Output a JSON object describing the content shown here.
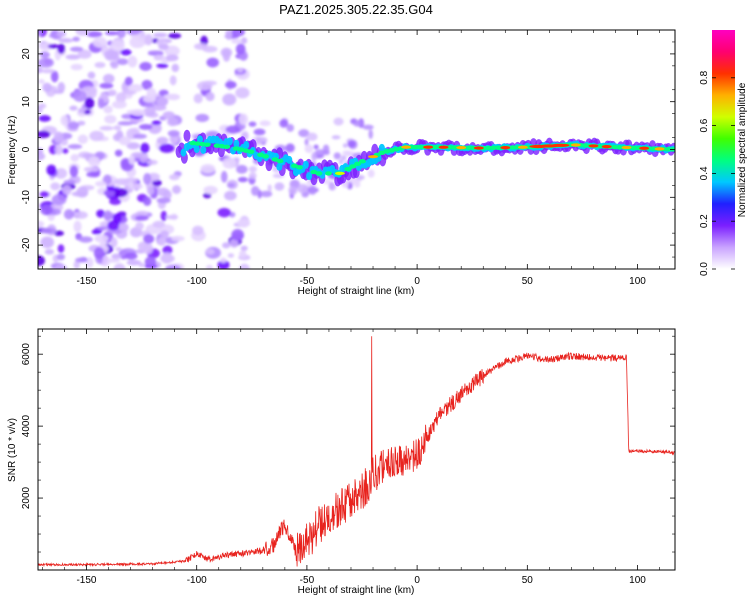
{
  "figure_title": "PAZ1.2025.305.22.35.G04",
  "chart_data": [
    {
      "type": "heatmap",
      "title": "PAZ1.2025.305.22.35.G04",
      "xlabel": "Height of straight line (km)",
      "ylabel": "Frequency (Hz)",
      "xlim": [
        -172,
        117
      ],
      "ylim": [
        -25,
        25
      ],
      "x_ticks": [
        -150,
        -100,
        -50,
        0,
        50,
        100
      ],
      "y_ticks": [
        -20,
        -10,
        0,
        10,
        20
      ],
      "x_tick_labels": [
        "-150",
        "-100",
        "-50",
        "0",
        "50",
        "100"
      ],
      "y_tick_labels": [
        "-20",
        "-10",
        "0",
        "10",
        "20"
      ],
      "colorbar": {
        "label": "Normalized spectral amplitude",
        "range": [
          0,
          1
        ],
        "ticks": [
          0.0,
          0.2,
          0.4,
          0.6,
          0.8
        ],
        "tick_labels": [
          "0.0",
          "0.2",
          "0.4",
          "0.6",
          "0.8"
        ],
        "colors": [
          "#ffffff",
          "#c9a3ff",
          "#7b1fff",
          "#2020ff",
          "#00c8ff",
          "#00ff80",
          "#40ff00",
          "#d0ff00",
          "#ffb000",
          "#ff3000",
          "#ff0070",
          "#ff00c0"
        ]
      },
      "ridge_center_hz": [
        {
          "x": -105,
          "y": 1.5
        },
        {
          "x": -95,
          "y": 1.0
        },
        {
          "x": -85,
          "y": 0.5
        },
        {
          "x": -75,
          "y": -0.5
        },
        {
          "x": -65,
          "y": -2.0
        },
        {
          "x": -55,
          "y": -3.5
        },
        {
          "x": -45,
          "y": -5.0
        },
        {
          "x": -35,
          "y": -5.0
        },
        {
          "x": -25,
          "y": -2.5
        },
        {
          "x": -15,
          "y": -0.5
        },
        {
          "x": -5,
          "y": 0.5
        },
        {
          "x": 10,
          "y": 0.5
        },
        {
          "x": 30,
          "y": 0.3
        },
        {
          "x": 50,
          "y": 0.5
        },
        {
          "x": 70,
          "y": 1.0
        },
        {
          "x": 90,
          "y": 0.5
        },
        {
          "x": 117,
          "y": 0.0
        }
      ]
    },
    {
      "type": "line",
      "xlabel": "Height of straight line (km)",
      "ylabel": "SNR (10 * v/v)",
      "xlim": [
        -172,
        117
      ],
      "ylim": [
        0,
        6700
      ],
      "x_ticks": [
        -150,
        -100,
        -50,
        0,
        50,
        100
      ],
      "y_ticks": [
        2000,
        4000,
        6000
      ],
      "x_tick_labels": [
        "-150",
        "-100",
        "-50",
        "0",
        "50",
        "100"
      ],
      "y_tick_labels": [
        "2000",
        "4000",
        "6000"
      ],
      "series": [
        {
          "name": "SNR",
          "color": "#e8231e",
          "x": [
            -172,
            -150,
            -120,
            -105,
            -100,
            -95,
            -90,
            -80,
            -70,
            -65,
            -60,
            -55,
            -50,
            -45,
            -40,
            -35,
            -30,
            -25,
            -20,
            -15,
            -10,
            -5,
            0,
            10,
            20,
            30,
            40,
            50,
            60,
            70,
            80,
            90,
            95,
            96,
            100,
            110,
            117
          ],
          "values": [
            150,
            150,
            170,
            250,
            450,
            300,
            380,
            450,
            550,
            700,
            1300,
            500,
            750,
            1200,
            1600,
            1700,
            1900,
            2200,
            2600,
            2900,
            3000,
            3100,
            3200,
            4300,
            4900,
            5400,
            5800,
            5950,
            5850,
            5950,
            5900,
            5900,
            5900,
            3300,
            3300,
            3300,
            3250
          ]
        }
      ]
    }
  ]
}
